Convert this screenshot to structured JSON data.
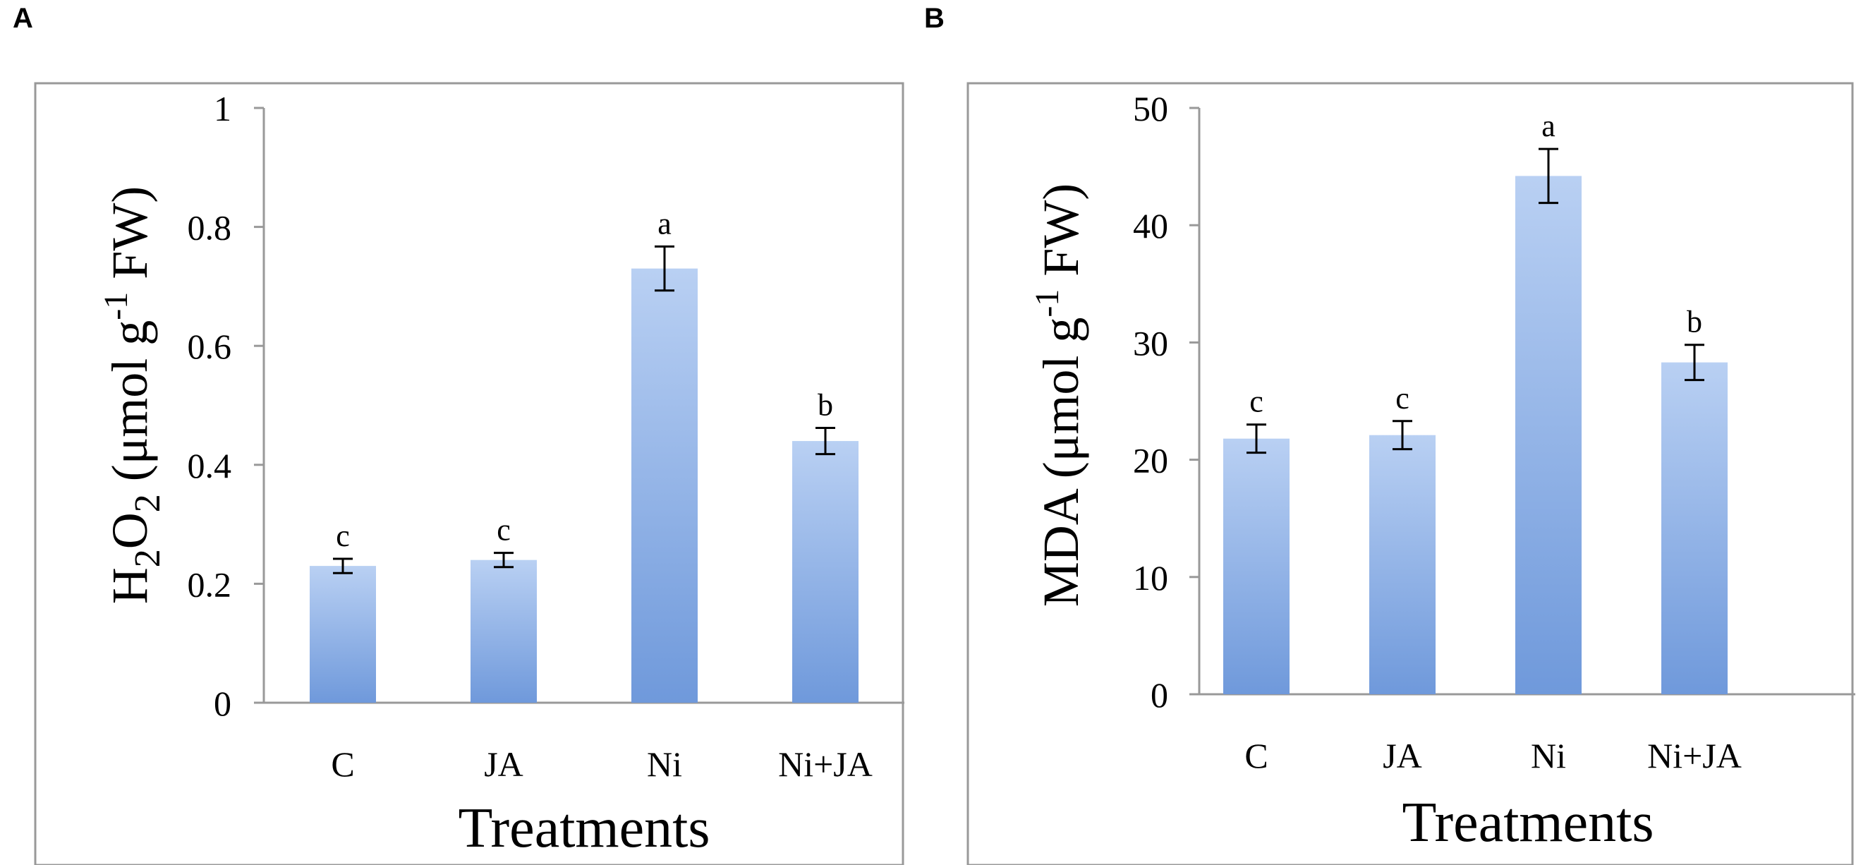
{
  "panels": [
    {
      "letter": "A",
      "chart_data": {
        "type": "bar",
        "categories": [
          "C",
          "JA",
          "Ni",
          "Ni+JA"
        ],
        "values": [
          0.23,
          0.24,
          0.73,
          0.44
        ],
        "errors": [
          0.012,
          0.012,
          0.037,
          0.022
        ],
        "letters": [
          "c",
          "c",
          "a",
          "b"
        ],
        "xlabel": "Treatments",
        "ylabel": {
          "main": "H",
          "sub1": "2",
          "mid": "O",
          "sub2": "2",
          "rest": " (μmol g",
          "sup": "-1",
          "tail": " FW)"
        },
        "ylim": [
          0,
          1
        ],
        "yticks": [
          0,
          0.2,
          0.4,
          0.6,
          0.8,
          1
        ],
        "ytick_labels": [
          "0",
          "0.2",
          "0.4",
          "0.6",
          "0.8",
          "1"
        ],
        "bar_color": "#7fa8e4"
      }
    },
    {
      "letter": "B",
      "chart_data": {
        "type": "bar",
        "categories": [
          "C",
          "JA",
          "Ni",
          "Ni+JA"
        ],
        "values": [
          21.8,
          22.1,
          44.2,
          28.3
        ],
        "errors": [
          1.2,
          1.2,
          2.3,
          1.5
        ],
        "letters": [
          "c",
          "c",
          "a",
          "b"
        ],
        "xlabel": "Treatments",
        "ylabel": {
          "main": "MDA (μmol g",
          "sup": "-1",
          "tail": " FW)"
        },
        "ylim": [
          0,
          50
        ],
        "yticks": [
          0,
          10,
          20,
          30,
          40,
          50
        ],
        "ytick_labels": [
          "0",
          "10",
          "20",
          "30",
          "40",
          "50"
        ],
        "bar_color": "#7fa8e4"
      }
    }
  ]
}
